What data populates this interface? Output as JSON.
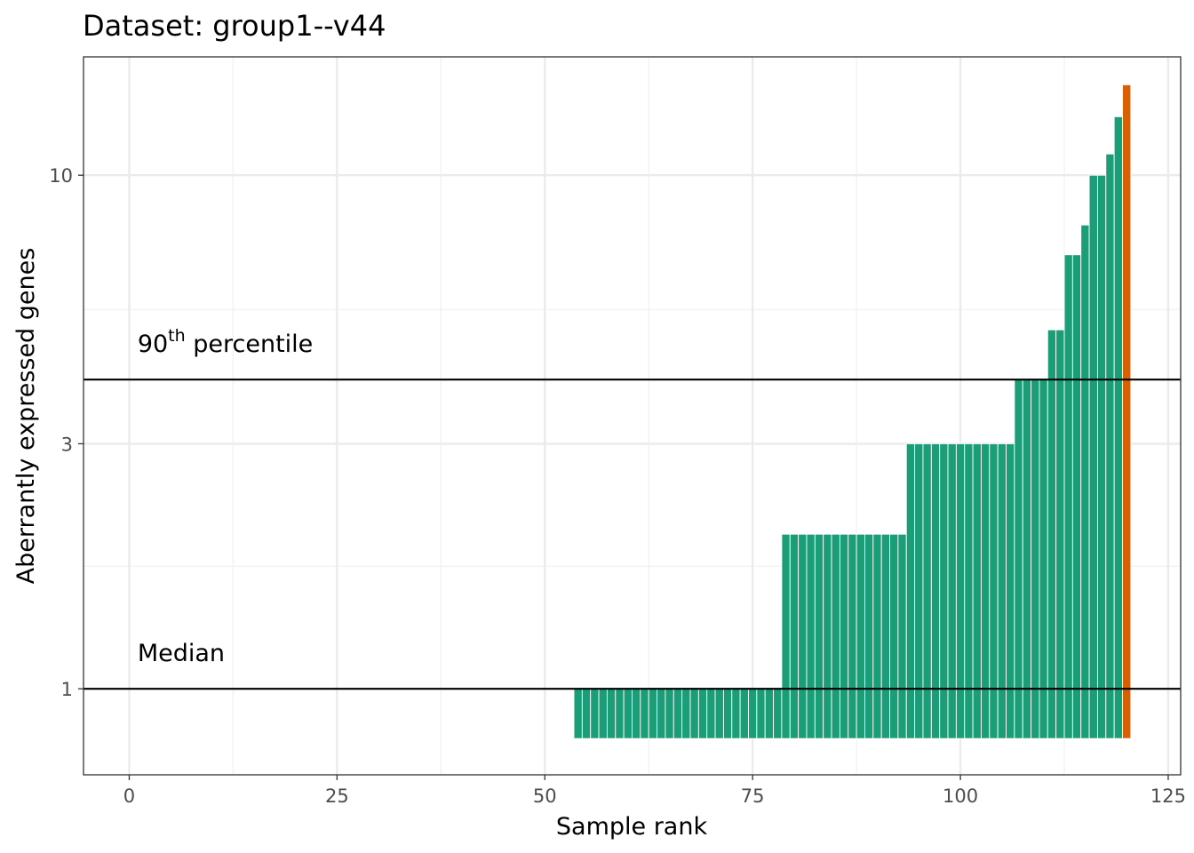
{
  "chart_data": {
    "type": "bar",
    "title": "Dataset: group1--v44",
    "xlabel": "Sample rank",
    "ylabel": "Aberrantly expressed genes",
    "y_scale": "log",
    "xlim": [
      -5.5,
      126.5
    ],
    "ylim": [
      0.68,
      17
    ],
    "x_ticks": [
      {
        "value": 0,
        "label": "0"
      },
      {
        "value": 25,
        "label": "25"
      },
      {
        "value": 50,
        "label": "50"
      },
      {
        "value": 75,
        "label": "75"
      },
      {
        "value": 100,
        "label": "100"
      },
      {
        "value": 125,
        "label": "125"
      }
    ],
    "y_ticks": [
      {
        "value": 1,
        "label": "1"
      },
      {
        "value": 3,
        "label": "3"
      },
      {
        "value": 10,
        "label": "10"
      }
    ],
    "grid": true,
    "bar_baseline": 0.8,
    "series": [
      {
        "color": "#1B9E77",
        "points": [
          {
            "x": 54,
            "y": 1
          },
          {
            "x": 55,
            "y": 1
          },
          {
            "x": 56,
            "y": 1
          },
          {
            "x": 57,
            "y": 1
          },
          {
            "x": 58,
            "y": 1
          },
          {
            "x": 59,
            "y": 1
          },
          {
            "x": 60,
            "y": 1
          },
          {
            "x": 61,
            "y": 1
          },
          {
            "x": 62,
            "y": 1
          },
          {
            "x": 63,
            "y": 1
          },
          {
            "x": 64,
            "y": 1
          },
          {
            "x": 65,
            "y": 1
          },
          {
            "x": 66,
            "y": 1
          },
          {
            "x": 67,
            "y": 1
          },
          {
            "x": 68,
            "y": 1
          },
          {
            "x": 69,
            "y": 1
          },
          {
            "x": 70,
            "y": 1
          },
          {
            "x": 71,
            "y": 1
          },
          {
            "x": 72,
            "y": 1
          },
          {
            "x": 73,
            "y": 1
          },
          {
            "x": 74,
            "y": 1
          },
          {
            "x": 75,
            "y": 1
          },
          {
            "x": 76,
            "y": 1
          },
          {
            "x": 77,
            "y": 1
          },
          {
            "x": 78,
            "y": 1
          },
          {
            "x": 79,
            "y": 2
          },
          {
            "x": 80,
            "y": 2
          },
          {
            "x": 81,
            "y": 2
          },
          {
            "x": 82,
            "y": 2
          },
          {
            "x": 83,
            "y": 2
          },
          {
            "x": 84,
            "y": 2
          },
          {
            "x": 85,
            "y": 2
          },
          {
            "x": 86,
            "y": 2
          },
          {
            "x": 87,
            "y": 2
          },
          {
            "x": 88,
            "y": 2
          },
          {
            "x": 89,
            "y": 2
          },
          {
            "x": 90,
            "y": 2
          },
          {
            "x": 91,
            "y": 2
          },
          {
            "x": 92,
            "y": 2
          },
          {
            "x": 93,
            "y": 2
          },
          {
            "x": 94,
            "y": 3
          },
          {
            "x": 95,
            "y": 3
          },
          {
            "x": 96,
            "y": 3
          },
          {
            "x": 97,
            "y": 3
          },
          {
            "x": 98,
            "y": 3
          },
          {
            "x": 99,
            "y": 3
          },
          {
            "x": 100,
            "y": 3
          },
          {
            "x": 101,
            "y": 3
          },
          {
            "x": 102,
            "y": 3
          },
          {
            "x": 103,
            "y": 3
          },
          {
            "x": 104,
            "y": 3
          },
          {
            "x": 105,
            "y": 3
          },
          {
            "x": 106,
            "y": 3
          },
          {
            "x": 107,
            "y": 4
          },
          {
            "x": 108,
            "y": 4
          },
          {
            "x": 109,
            "y": 4
          },
          {
            "x": 110,
            "y": 4
          },
          {
            "x": 111,
            "y": 5
          },
          {
            "x": 112,
            "y": 5
          },
          {
            "x": 113,
            "y": 7
          },
          {
            "x": 114,
            "y": 7
          },
          {
            "x": 115,
            "y": 8
          },
          {
            "x": 116,
            "y": 10
          },
          {
            "x": 117,
            "y": 10
          },
          {
            "x": 118,
            "y": 11
          },
          {
            "x": 119,
            "y": 13
          }
        ]
      },
      {
        "color": "#D95F02",
        "points": [
          {
            "x": 120,
            "y": 15
          }
        ]
      }
    ],
    "reference_lines": [
      {
        "y": 1,
        "label": "Median",
        "label_sup": ""
      },
      {
        "y": 4,
        "label": "90",
        "label_sup": "th",
        "label_suffix": " percentile"
      }
    ]
  }
}
